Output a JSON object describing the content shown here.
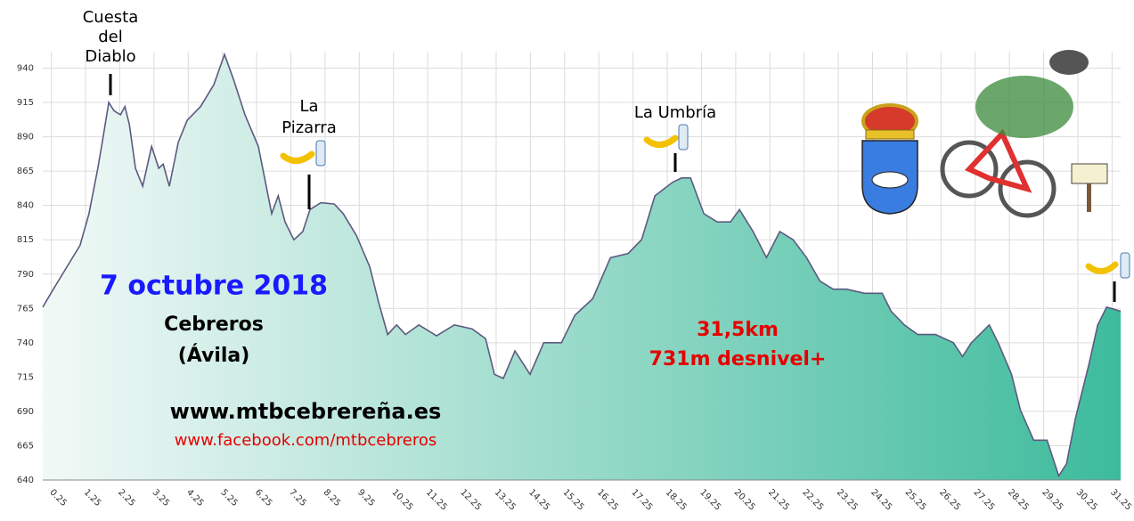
{
  "chart_data": {
    "type": "area",
    "x": [
      0,
      0.31,
      0.7,
      1.09,
      1.35,
      1.61,
      1.74,
      1.93,
      2.08,
      2.27,
      2.4,
      2.53,
      2.71,
      2.92,
      3.18,
      3.39,
      3.52,
      3.7,
      3.96,
      4.22,
      4.61,
      5.0,
      5.31,
      5.57,
      5.91,
      6.3,
      6.69,
      6.88,
      7.08,
      7.34,
      7.6,
      7.81,
      8.13,
      8.52,
      8.78,
      9.17,
      9.56,
      9.82,
      10.08,
      10.34,
      10.6,
      10.99,
      11.51,
      12.03,
      12.55,
      12.94,
      13.2,
      13.46,
      13.8,
      14.24,
      14.64,
      15.16,
      15.55,
      16.07,
      16.59,
      17.11,
      17.5,
      17.89,
      18.41,
      18.67,
      18.93,
      19.32,
      19.71,
      20.1,
      20.36,
      20.76,
      21.15,
      21.54,
      21.93,
      22.32,
      22.71,
      23.1,
      23.49,
      24.01,
      24.53,
      24.79,
      25.18,
      25.57,
      26.09,
      26.61,
      26.88,
      27.14,
      27.66,
      27.92,
      28.31,
      28.57,
      28.96,
      29.35,
      29.69,
      29.92,
      30.18,
      30.57,
      30.83,
      31.09,
      31.5
    ],
    "values": [
      766,
      779,
      795,
      811,
      834,
      867,
      886,
      915,
      909,
      906,
      912,
      899,
      867,
      854,
      883,
      867,
      870,
      854,
      886,
      902,
      912,
      928,
      950,
      932,
      906,
      883,
      834,
      847,
      828,
      815,
      821,
      837,
      842,
      841,
      834,
      818,
      795,
      769,
      746,
      753,
      746,
      753,
      745,
      753,
      750,
      743,
      717,
      714,
      734,
      717,
      740,
      740,
      760,
      772,
      802,
      805,
      815,
      847,
      857,
      860,
      860,
      834,
      828,
      828,
      837,
      821,
      802,
      821,
      815,
      802,
      785,
      779,
      779,
      776,
      776,
      763,
      753,
      746,
      746,
      740,
      730,
      740,
      753,
      740,
      717,
      691,
      669,
      669,
      643,
      652,
      685,
      724,
      753,
      766,
      763
    ],
    "line_color": "#5c5a80",
    "fill_colors": [
      "#f2f9f7",
      "#3dbb9c"
    ],
    "xlim": [
      0,
      31.5
    ],
    "ylim": [
      640,
      952
    ],
    "xticks": [
      0.25,
      1.25,
      2.25,
      3.25,
      4.25,
      5.25,
      6.25,
      7.25,
      8.25,
      9.25,
      10.25,
      11.25,
      12.25,
      13.25,
      14.25,
      15.25,
      16.25,
      17.25,
      18.25,
      19.25,
      20.25,
      21.25,
      22.25,
      23.25,
      24.25,
      25.25,
      26.25,
      27.25,
      28.25,
      29.25,
      30.25,
      31.25
    ],
    "yticks": [
      640,
      665,
      690,
      715,
      740,
      765,
      790,
      815,
      840,
      865,
      890,
      915,
      940
    ],
    "grid": true,
    "annotations": [
      {
        "lines": [
          "Cuesta",
          "del",
          "Diablo"
        ],
        "color": "#000000"
      },
      {
        "lines": [
          "La",
          "Pizarra"
        ],
        "color": "#000000"
      },
      {
        "lines": [
          "La Umbría"
        ],
        "color": "#000000"
      },
      {
        "lines": [
          "7 octubre 2018"
        ],
        "color": "#1a1aff"
      },
      {
        "lines": [
          "Cebreros",
          "(Ávila)"
        ],
        "color": "#000000"
      },
      {
        "lines": [
          "www.mtbcebrereña.es"
        ],
        "color": "#000000"
      },
      {
        "lines": [
          "www.facebook.com/mtbcebreros"
        ],
        "color": "#e60000"
      },
      {
        "lines": [
          "31,5km",
          "731m desnivel+"
        ],
        "color": "#e60000"
      }
    ]
  }
}
